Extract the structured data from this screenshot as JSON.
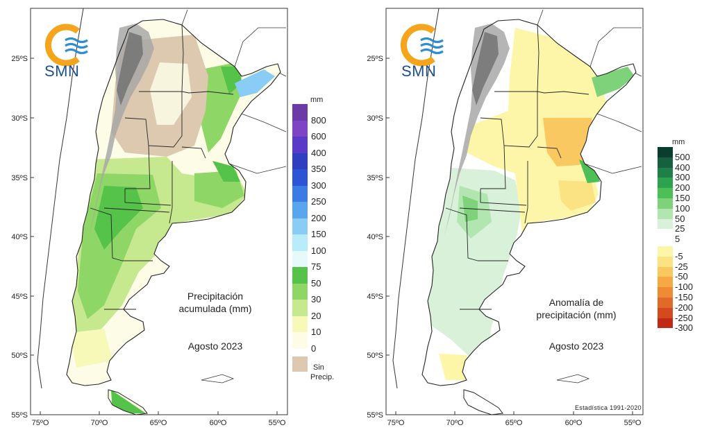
{
  "left_map": {
    "logo_text": "SMN",
    "title_line1": "Precipitación",
    "title_line2": "acumulada (mm)",
    "period": "Agosto 2023",
    "legend_unit": "mm",
    "legend": [
      {
        "label": "800",
        "color": "#6b3aa8"
      },
      {
        "label": "600",
        "color": "#7d45c6"
      },
      {
        "label": "400",
        "color": "#5a3ac8"
      },
      {
        "label": "350",
        "color": "#2f3fbf"
      },
      {
        "label": "300",
        "color": "#2c55d6"
      },
      {
        "label": "250",
        "color": "#3b7be3"
      },
      {
        "label": "200",
        "color": "#5aa6ee"
      },
      {
        "label": "150",
        "color": "#89ccf5"
      },
      {
        "label": "100",
        "color": "#b9ecf9"
      },
      {
        "label": "75",
        "color": "#e6f9fb"
      },
      {
        "label": "50",
        "color": "#55c24a"
      },
      {
        "label": "30",
        "color": "#8ed665"
      },
      {
        "label": "20",
        "color": "#c6e88f"
      },
      {
        "label": "10",
        "color": "#f6f9b8"
      },
      {
        "label": "0",
        "color": "#fdfde7"
      }
    ],
    "no_precip_label_line1": "Sin",
    "no_precip_label_line2": "Precip.",
    "no_precip_color": "#dcc9b0"
  },
  "right_map": {
    "logo_text": "SMN",
    "title_line1": "Anomalía de",
    "title_line2": "precipitación (mm)",
    "period": "Agosto 2023",
    "legend_unit": "mm",
    "legend_positive": [
      {
        "label": "500",
        "color": "#0b3d2e"
      },
      {
        "label": "400",
        "color": "#16603f"
      },
      {
        "label": "300",
        "color": "#1f7f48"
      },
      {
        "label": "200",
        "color": "#2ea34f"
      },
      {
        "label": "150",
        "color": "#4cbf55"
      },
      {
        "label": "100",
        "color": "#7ed37a"
      },
      {
        "label": "50",
        "color": "#b2e6b0"
      },
      {
        "label": "25",
        "color": "#d8f1d8"
      },
      {
        "label": "5",
        "color": "#ffffff"
      }
    ],
    "legend_negative": [
      {
        "label": "-5",
        "color": "#fdf6a8"
      },
      {
        "label": "-25",
        "color": "#fbe383"
      },
      {
        "label": "-50",
        "color": "#f9c860"
      },
      {
        "label": "-100",
        "color": "#f5a844"
      },
      {
        "label": "-150",
        "color": "#ef8a35"
      },
      {
        "label": "-200",
        "color": "#e26a28"
      },
      {
        "label": "-250",
        "color": "#d24a1e"
      },
      {
        "label": "-300",
        "color": "#c02a14"
      }
    ],
    "stat_note": "Estadística 1991-2020"
  },
  "axes": {
    "lat_labels": [
      "25ºS",
      "30ºS",
      "35ºS",
      "40ºS",
      "45ºS",
      "50ºS",
      "55ºS"
    ],
    "lon_labels": [
      "75ºO",
      "70ºO",
      "65ºO",
      "60ºO",
      "55ºO"
    ]
  }
}
